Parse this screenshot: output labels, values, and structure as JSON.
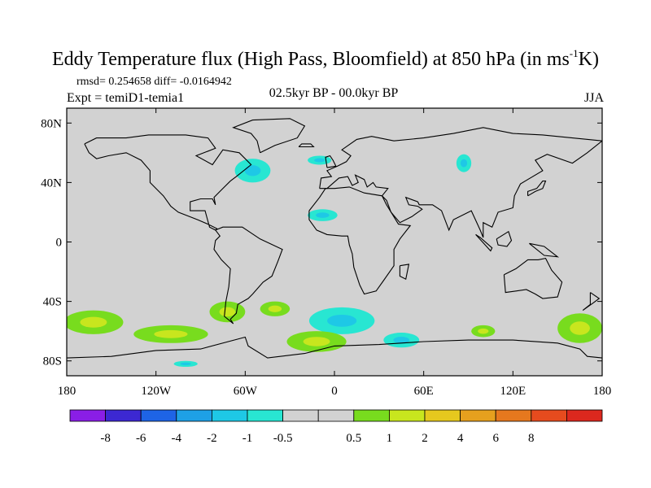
{
  "title": {
    "main": "Eddy Temperature flux (High Pass, Bloomfield) at 850 hPa (in ms",
    "sup": "-1",
    "tail": "K)"
  },
  "stats": "rmsd= 0.254658 diff= -0.0164942",
  "experiment": "Expt = temiD1-temia1",
  "period": "02.5kyr BP - 00.0kyr BP",
  "season": "JJA",
  "axes": {
    "y_ticks": [
      {
        "label": "80N",
        "lat": 80
      },
      {
        "label": "40N",
        "lat": 40
      },
      {
        "label": "0",
        "lat": 0
      },
      {
        "label": "40S",
        "lat": -40
      },
      {
        "label": "80S",
        "lat": -80
      }
    ],
    "x_ticks": [
      {
        "label": "180",
        "lon": -180
      },
      {
        "label": "120W",
        "lon": -120
      },
      {
        "label": "60W",
        "lon": -60
      },
      {
        "label": "0",
        "lon": 0
      },
      {
        "label": "60E",
        "lon": 60
      },
      {
        "label": "120E",
        "lon": 120
      },
      {
        "label": "180",
        "lon": 180
      }
    ],
    "lon_range": [
      -180,
      180
    ],
    "lat_range": [
      -90,
      90
    ]
  },
  "colorbar": {
    "colors": [
      "#8a1ee6",
      "#3c28d2",
      "#1e64e6",
      "#1ea0e6",
      "#1ec8e6",
      "#28e6d2",
      "#d2d2d2",
      "#d2d2d2",
      "#78dc1e",
      "#c8e61e",
      "#e6c81e",
      "#e6a01e",
      "#e6781e",
      "#e64b1e",
      "#dc281e"
    ],
    "labels": [
      "-8",
      "-6",
      "-4",
      "-2",
      "-1",
      "-0.5",
      "0.5",
      "1",
      "2",
      "4",
      "6",
      "8"
    ]
  },
  "map": {
    "background": "#d2d2d2",
    "features": [
      {
        "name": "n-atlantic-negative",
        "level": "cyan",
        "lon": -55,
        "lat": 48,
        "rx": 12,
        "ry": 8
      },
      {
        "name": "europe-north-negative",
        "level": "cyan",
        "lon": -10,
        "lat": 55,
        "rx": 8,
        "ry": 3
      },
      {
        "name": "mediterranean-negative",
        "level": "cyan",
        "lon": -8,
        "lat": 18,
        "rx": 10,
        "ry": 4
      },
      {
        "name": "central-asia-negative",
        "level": "cyan",
        "lon": 87,
        "lat": 53,
        "rx": 5,
        "ry": 6
      },
      {
        "name": "s-atlantic-negative",
        "level": "cyan",
        "lon": 5,
        "lat": -53,
        "rx": 22,
        "ry": 9
      },
      {
        "name": "south-africa-negative",
        "level": "cyan",
        "lon": 45,
        "lat": -66,
        "rx": 12,
        "ry": 5
      },
      {
        "name": "s-pacific-neg-east",
        "level": "cyan",
        "lon": -100,
        "lat": -82,
        "rx": 8,
        "ry": 2
      },
      {
        "name": "s-pacific-pos-west",
        "level": "green",
        "lon": -162,
        "lat": -54,
        "rx": 20,
        "ry": 8
      },
      {
        "name": "s-pacific-pos-center",
        "level": "green",
        "lon": -110,
        "lat": -62,
        "rx": 25,
        "ry": 6
      },
      {
        "name": "chile-positive",
        "level": "green",
        "lon": -72,
        "lat": -47,
        "rx": 12,
        "ry": 7
      },
      {
        "name": "argentina-positive",
        "level": "green",
        "lon": -40,
        "lat": -45,
        "rx": 10,
        "ry": 5
      },
      {
        "name": "s-atlantic-pos-central",
        "level": "green",
        "lon": -12,
        "lat": -67,
        "rx": 20,
        "ry": 7
      },
      {
        "name": "indian-ocean-positive",
        "level": "green",
        "lon": 100,
        "lat": -60,
        "rx": 8,
        "ry": 4
      },
      {
        "name": "new-zealand-positive",
        "level": "green",
        "lon": 165,
        "lat": -58,
        "rx": 15,
        "ry": 10
      }
    ]
  }
}
